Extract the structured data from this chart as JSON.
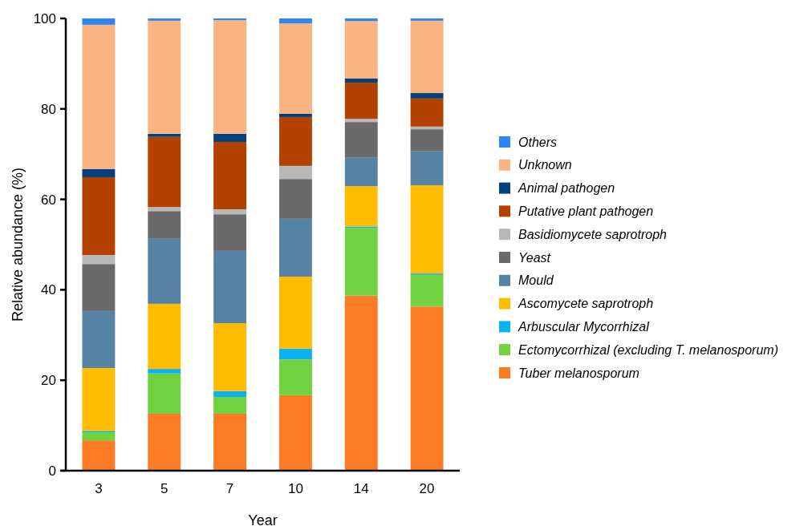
{
  "chart_data": {
    "type": "bar",
    "stacked": true,
    "xlabel": "Year",
    "ylabel": "Relative abundance (%)",
    "categories": [
      "3",
      "5",
      "7",
      "10",
      "14",
      "20"
    ],
    "ylim": [
      0,
      100
    ],
    "yticks": [
      0,
      20,
      40,
      60,
      80,
      100
    ],
    "grid": false,
    "legend": "right",
    "series": [
      {
        "name": "Tuber melanosporum",
        "color": "#fe7b26",
        "values": [
          6.7,
          12.6,
          12.6,
          16.7,
          38.7,
          36.3
        ]
      },
      {
        "name": "Ectomycorrhizal (excluding T. melanosporum)",
        "color": "#6fd23e",
        "values": [
          1.8,
          8.9,
          3.7,
          7.9,
          15.0,
          7.0
        ]
      },
      {
        "name": "Arbuscular Mycorrhizal",
        "color": "#0cb2f0",
        "values": [
          0.3,
          1.0,
          1.3,
          2.4,
          0.3,
          0.3
        ]
      },
      {
        "name": "Ascomycete saprotroph",
        "color": "#ffbc00",
        "values": [
          13.9,
          14.4,
          15.0,
          15.9,
          8.9,
          19.5
        ]
      },
      {
        "name": "Mould",
        "color": "#5683a3",
        "values": [
          12.6,
          14.5,
          16.0,
          12.8,
          6.4,
          7.6
        ]
      },
      {
        "name": "Yeast",
        "color": "#6a6a6a",
        "values": [
          10.4,
          6.0,
          8.1,
          8.8,
          7.8,
          4.8
        ]
      },
      {
        "name": "Basidiomycete saprotroph",
        "color": "#b8b8b8",
        "values": [
          2.0,
          0.9,
          1.1,
          2.9,
          0.7,
          0.6
        ]
      },
      {
        "name": "Putative plant pathogen",
        "color": "#b34100",
        "values": [
          17.2,
          15.5,
          14.9,
          10.8,
          8.0,
          6.2
        ]
      },
      {
        "name": "Animal pathogen",
        "color": "#00417e",
        "values": [
          1.8,
          0.7,
          1.8,
          0.7,
          0.9,
          1.2
        ]
      },
      {
        "name": "Unknown",
        "color": "#fbb382",
        "values": [
          31.9,
          25.0,
          25.1,
          20.0,
          12.7,
          16.0
        ]
      },
      {
        "name": "Others",
        "color": "#2e86f5",
        "values": [
          1.4,
          0.5,
          0.4,
          1.1,
          0.6,
          0.5
        ]
      }
    ]
  }
}
